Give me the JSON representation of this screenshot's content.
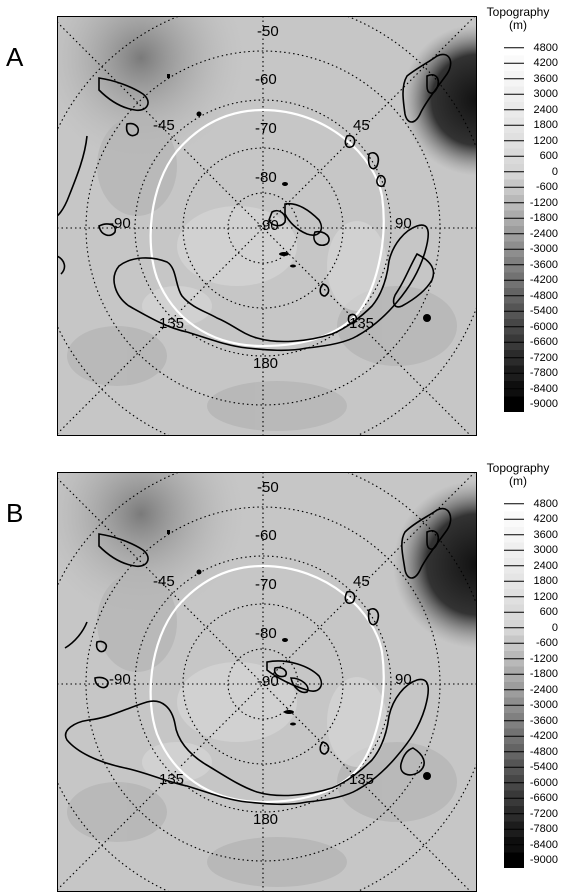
{
  "panels": [
    {
      "letter": "A",
      "latitude_labels": [
        "-50",
        "-60",
        "-70",
        "-80",
        "-90"
      ],
      "longitude_labels": [
        "-45",
        "45",
        "-90",
        "90",
        "135",
        "180",
        "135"
      ]
    },
    {
      "letter": "B",
      "latitude_labels": [
        "-50",
        "-60",
        "-70",
        "-80",
        "-90"
      ],
      "longitude_labels": [
        "-45",
        "45",
        "-90",
        "90",
        "135",
        "180",
        "135"
      ]
    }
  ],
  "legend": {
    "title_line1": "Topography",
    "title_line2": "(m)",
    "levels": [
      "4800",
      "4200",
      "3600",
      "3000",
      "2400",
      "1800",
      "1200",
      "600",
      "0",
      "-600",
      "-1200",
      "-1800",
      "-2400",
      "-3000",
      "-3600",
      "-4200",
      "-4800",
      "-5400",
      "-6000",
      "-6600",
      "-7200",
      "-7800",
      "-8400",
      "-9000"
    ],
    "color_top": "#ffffff",
    "color_bottom": "#000000"
  },
  "colors": {
    "terrain_base": "#c8c8c8",
    "contour_black": "#000000",
    "contour_white": "#ffffff",
    "dark_region": "#202020"
  }
}
